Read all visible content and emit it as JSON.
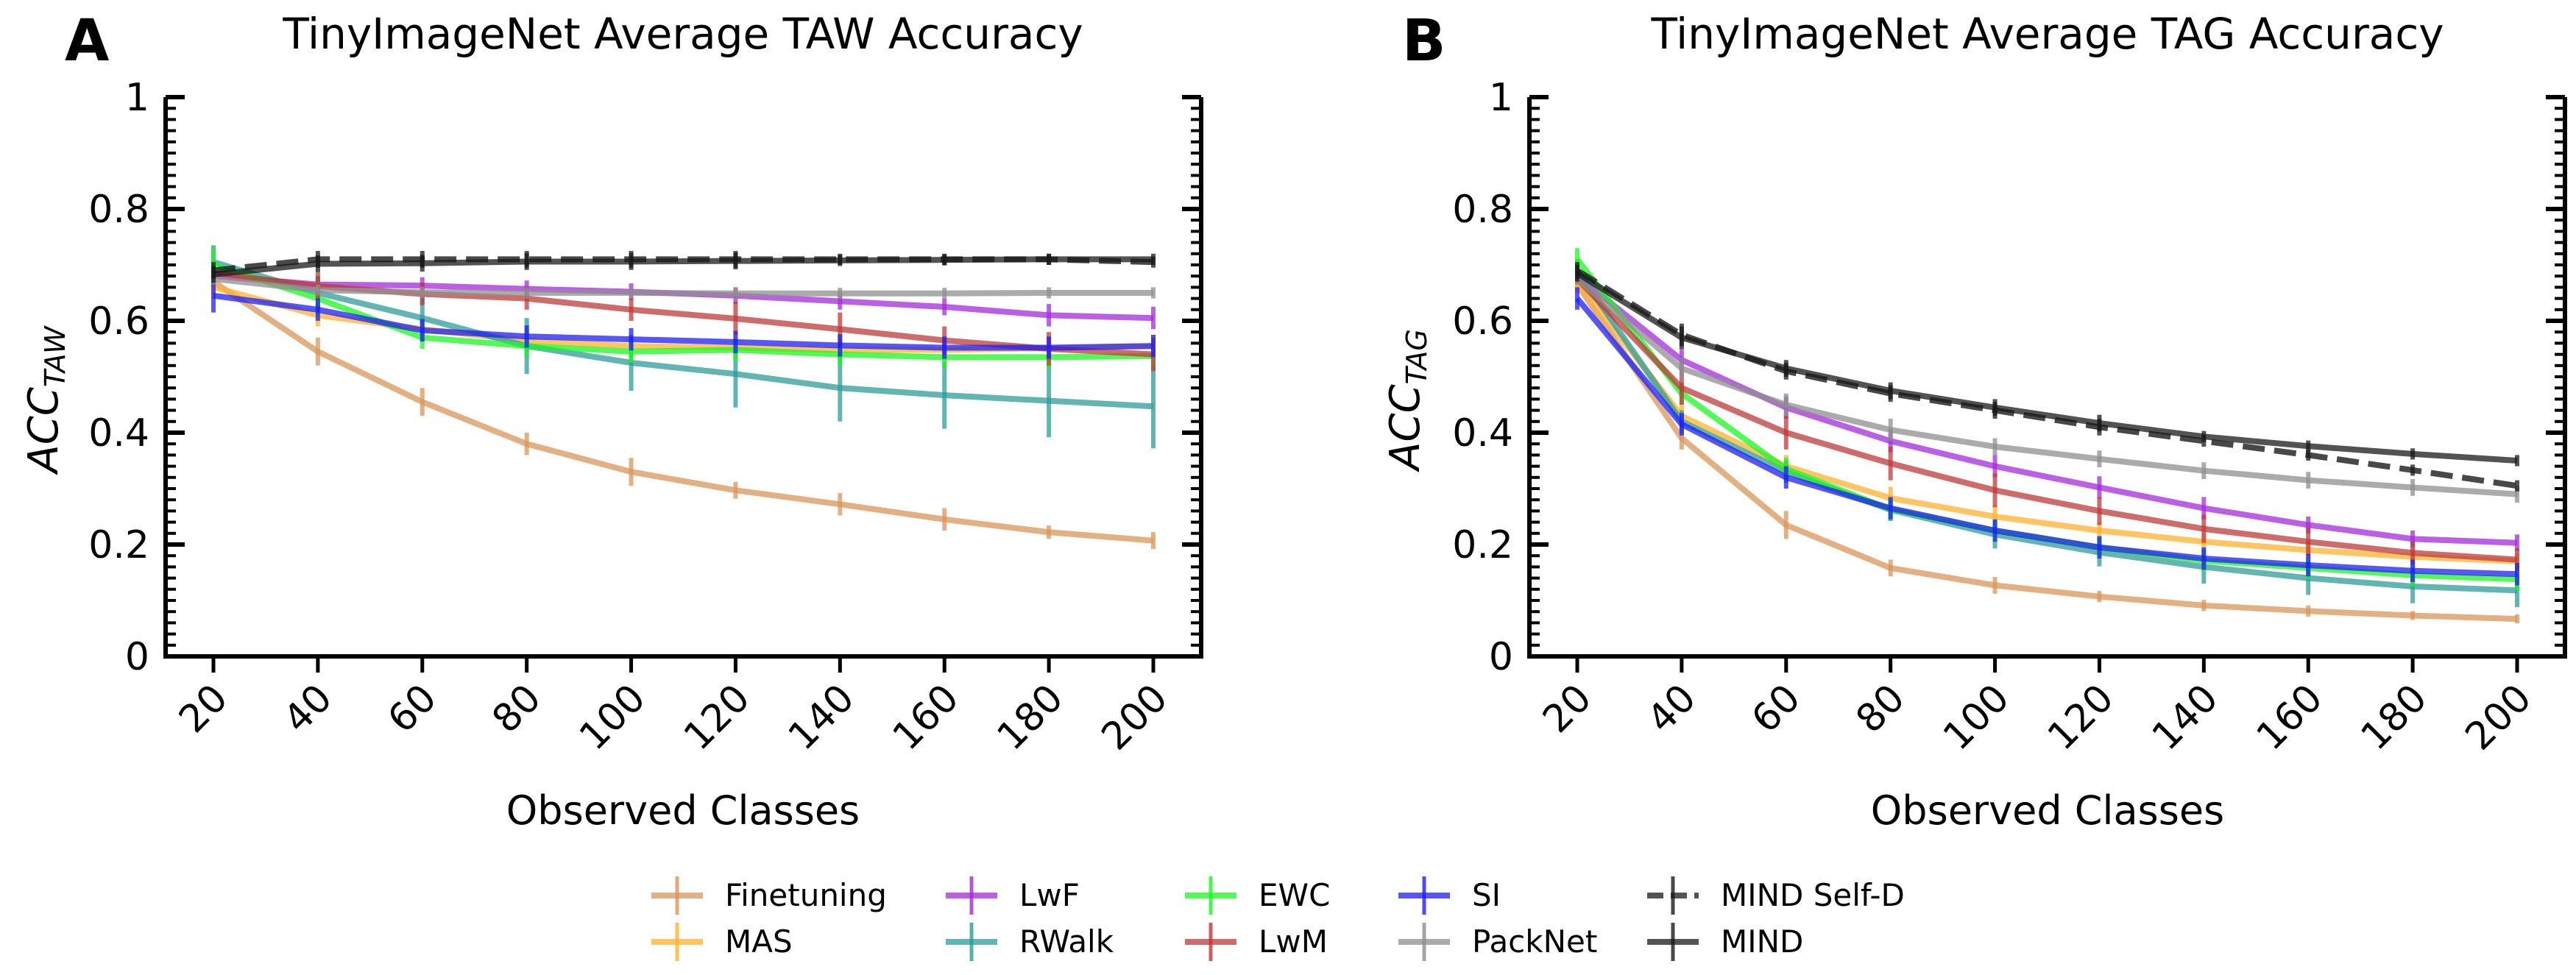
{
  "chart_data": [
    {
      "panel_letter": "A",
      "type": "line",
      "title": "TinyImageNet Average TAW Accuracy",
      "xlabel": "Observed Classes",
      "ylabel_main": "ACC",
      "ylabel_sub": "TAW",
      "x": [
        20,
        40,
        60,
        80,
        100,
        120,
        140,
        160,
        180,
        200
      ],
      "x_tick_labels": [
        "20",
        "40",
        "60",
        "80",
        "100",
        "120",
        "140",
        "160",
        "180",
        "200"
      ],
      "ylim": [
        0,
        1
      ],
      "y_ticks": [
        0,
        0.2,
        0.4,
        0.6,
        0.8,
        1
      ],
      "y_tick_labels": [
        "0",
        "0.2",
        "0.4",
        "0.6",
        "0.8",
        "1"
      ],
      "grid": false,
      "series": [
        {
          "name": "Finetuning",
          "values": [
            0.67,
            0.545,
            0.455,
            0.38,
            0.33,
            0.297,
            0.272,
            0.245,
            0.222,
            0.207
          ],
          "errors": [
            0.01,
            0.025,
            0.025,
            0.02,
            0.025,
            0.015,
            0.02,
            0.02,
            0.012,
            0.015
          ]
        },
        {
          "name": "MAS",
          "values": [
            0.66,
            0.61,
            0.585,
            0.565,
            0.555,
            0.552,
            0.548,
            0.548,
            0.551,
            0.555
          ],
          "errors": [
            0.02,
            0.02,
            0.02,
            0.02,
            0.02,
            0.02,
            0.02,
            0.02,
            0.02,
            0.02
          ]
        },
        {
          "name": "LwF",
          "values": [
            0.68,
            0.665,
            0.663,
            0.657,
            0.652,
            0.645,
            0.635,
            0.625,
            0.61,
            0.605
          ],
          "errors": [
            0.01,
            0.015,
            0.015,
            0.015,
            0.015,
            0.015,
            0.015,
            0.015,
            0.02,
            0.02
          ]
        },
        {
          "name": "RWalk",
          "values": [
            0.705,
            0.65,
            0.605,
            0.555,
            0.525,
            0.505,
            0.48,
            0.467,
            0.457,
            0.447
          ],
          "errors": [
            0.03,
            0.03,
            0.04,
            0.05,
            0.05,
            0.06,
            0.06,
            0.06,
            0.065,
            0.075
          ]
        },
        {
          "name": "EWC",
          "values": [
            0.7,
            0.64,
            0.57,
            0.555,
            0.545,
            0.548,
            0.54,
            0.535,
            0.535,
            0.537
          ],
          "errors": [
            0.03,
            0.03,
            0.02,
            0.02,
            0.02,
            0.02,
            0.02,
            0.02,
            0.02,
            0.02
          ]
        },
        {
          "name": "LwM",
          "values": [
            0.685,
            0.662,
            0.648,
            0.64,
            0.62,
            0.604,
            0.585,
            0.565,
            0.55,
            0.54
          ],
          "errors": [
            0.01,
            0.025,
            0.02,
            0.02,
            0.02,
            0.03,
            0.03,
            0.025,
            0.03,
            0.03
          ]
        },
        {
          "name": "SI",
          "values": [
            0.645,
            0.62,
            0.583,
            0.572,
            0.567,
            0.562,
            0.556,
            0.552,
            0.552,
            0.555
          ],
          "errors": [
            0.03,
            0.02,
            0.02,
            0.02,
            0.02,
            0.02,
            0.02,
            0.02,
            0.02,
            0.02
          ]
        },
        {
          "name": "PackNet",
          "values": [
            0.675,
            0.655,
            0.651,
            0.65,
            0.65,
            0.649,
            0.649,
            0.649,
            0.65,
            0.65
          ],
          "errors": [
            0.01,
            0.01,
            0.01,
            0.01,
            0.01,
            0.01,
            0.01,
            0.01,
            0.01,
            0.01
          ]
        },
        {
          "name": "MIND Self-D",
          "values": [
            0.69,
            0.71,
            0.71,
            0.71,
            0.71,
            0.71,
            0.71,
            0.71,
            0.71,
            0.705
          ],
          "errors": [
            0.015,
            0.015,
            0.015,
            0.015,
            0.015,
            0.015,
            0.01,
            0.01,
            0.01,
            0.01
          ]
        },
        {
          "name": "MIND",
          "values": [
            0.683,
            0.702,
            0.703,
            0.706,
            0.706,
            0.707,
            0.708,
            0.709,
            0.71,
            0.71
          ],
          "errors": [
            0.015,
            0.015,
            0.015,
            0.015,
            0.015,
            0.015,
            0.01,
            0.01,
            0.01,
            0.01
          ]
        }
      ]
    },
    {
      "panel_letter": "B",
      "type": "line",
      "title": "TinyImageNet Average TAG Accuracy",
      "xlabel": "Observed Classes",
      "ylabel_main": "ACC",
      "ylabel_sub": "TAG",
      "x": [
        20,
        40,
        60,
        80,
        100,
        120,
        140,
        160,
        180,
        200
      ],
      "x_tick_labels": [
        "20",
        "40",
        "60",
        "80",
        "100",
        "120",
        "140",
        "160",
        "180",
        "200"
      ],
      "ylim": [
        0,
        1
      ],
      "y_ticks": [
        0,
        0.2,
        0.4,
        0.6,
        0.8,
        1
      ],
      "y_tick_labels": [
        "0",
        "0.2",
        "0.4",
        "0.6",
        "0.8",
        "1"
      ],
      "grid": false,
      "series": [
        {
          "name": "Finetuning",
          "values": [
            0.665,
            0.39,
            0.235,
            0.158,
            0.127,
            0.107,
            0.091,
            0.081,
            0.073,
            0.067
          ],
          "errors": [
            0.015,
            0.02,
            0.025,
            0.015,
            0.015,
            0.01,
            0.01,
            0.01,
            0.008,
            0.008
          ]
        },
        {
          "name": "MAS",
          "values": [
            0.67,
            0.43,
            0.34,
            0.283,
            0.25,
            0.225,
            0.205,
            0.19,
            0.178,
            0.17
          ],
          "errors": [
            0.015,
            0.02,
            0.02,
            0.02,
            0.02,
            0.015,
            0.015,
            0.015,
            0.015,
            0.015
          ]
        },
        {
          "name": "LwF",
          "values": [
            0.68,
            0.53,
            0.445,
            0.385,
            0.34,
            0.302,
            0.265,
            0.235,
            0.21,
            0.203
          ],
          "errors": [
            0.01,
            0.02,
            0.02,
            0.02,
            0.02,
            0.02,
            0.02,
            0.015,
            0.015,
            0.015
          ]
        },
        {
          "name": "RWalk",
          "values": [
            0.69,
            0.42,
            0.33,
            0.262,
            0.218,
            0.186,
            0.16,
            0.14,
            0.125,
            0.118
          ],
          "errors": [
            0.02,
            0.02,
            0.02,
            0.02,
            0.025,
            0.025,
            0.03,
            0.03,
            0.03,
            0.03
          ]
        },
        {
          "name": "EWC",
          "values": [
            0.71,
            0.47,
            0.335,
            0.263,
            0.225,
            0.195,
            0.171,
            0.158,
            0.145,
            0.138
          ],
          "errors": [
            0.02,
            0.02,
            0.02,
            0.02,
            0.02,
            0.02,
            0.02,
            0.02,
            0.02,
            0.02
          ]
        },
        {
          "name": "LwM",
          "values": [
            0.675,
            0.48,
            0.4,
            0.345,
            0.297,
            0.26,
            0.228,
            0.205,
            0.185,
            0.173
          ],
          "errors": [
            0.01,
            0.03,
            0.03,
            0.03,
            0.03,
            0.025,
            0.025,
            0.025,
            0.02,
            0.02
          ]
        },
        {
          "name": "SI",
          "values": [
            0.64,
            0.415,
            0.32,
            0.265,
            0.225,
            0.195,
            0.175,
            0.163,
            0.153,
            0.147
          ],
          "errors": [
            0.02,
            0.02,
            0.02,
            0.02,
            0.02,
            0.02,
            0.02,
            0.02,
            0.02,
            0.02
          ]
        },
        {
          "name": "PackNet",
          "values": [
            0.675,
            0.515,
            0.45,
            0.405,
            0.375,
            0.353,
            0.332,
            0.315,
            0.302,
            0.29
          ],
          "errors": [
            0.01,
            0.02,
            0.02,
            0.02,
            0.015,
            0.015,
            0.015,
            0.015,
            0.015,
            0.015
          ]
        },
        {
          "name": "MIND Self-D",
          "values": [
            0.69,
            0.575,
            0.51,
            0.47,
            0.44,
            0.41,
            0.385,
            0.36,
            0.333,
            0.305
          ],
          "errors": [
            0.015,
            0.02,
            0.015,
            0.015,
            0.015,
            0.015,
            0.01,
            0.01,
            0.01,
            0.01
          ]
        },
        {
          "name": "MIND",
          "values": [
            0.685,
            0.57,
            0.515,
            0.475,
            0.445,
            0.417,
            0.393,
            0.376,
            0.362,
            0.35
          ],
          "errors": [
            0.015,
            0.02,
            0.015,
            0.015,
            0.015,
            0.015,
            0.01,
            0.01,
            0.01,
            0.01
          ]
        }
      ]
    }
  ],
  "legend": {
    "placement": "bottom-center",
    "entries": [
      {
        "name": "Finetuning",
        "color": "#d9955a",
        "style": "solid"
      },
      {
        "name": "MAS",
        "color": "#ffb22e",
        "style": "solid"
      },
      {
        "name": "LwF",
        "color": "#a42bdb",
        "style": "solid"
      },
      {
        "name": "RWalk",
        "color": "#2e9c99",
        "style": "solid"
      },
      {
        "name": "EWC",
        "color": "#1cf522",
        "style": "solid"
      },
      {
        "name": "LwM",
        "color": "#bd3a3a",
        "style": "solid"
      },
      {
        "name": "SI",
        "color": "#1f1ff5",
        "style": "solid"
      },
      {
        "name": "PackNet",
        "color": "#8f8f8f",
        "style": "solid"
      },
      {
        "name": "MIND Self-D",
        "color": "#1a1a1a",
        "style": "dashed"
      },
      {
        "name": "MIND",
        "color": "#1a1a1a",
        "style": "solid"
      }
    ]
  }
}
